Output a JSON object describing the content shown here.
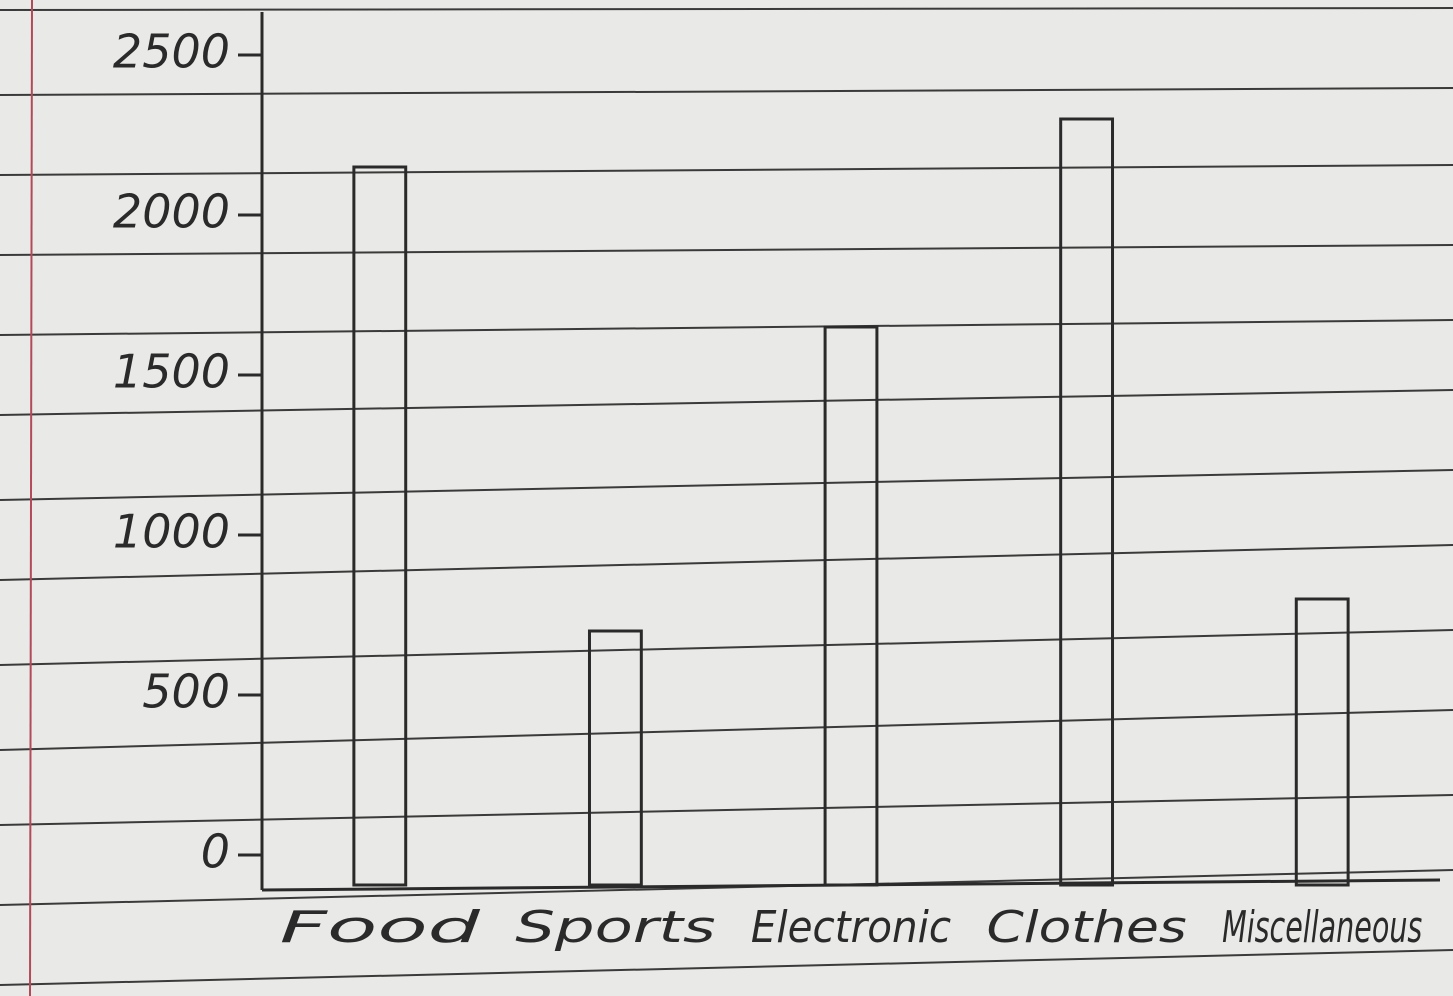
{
  "chart_data": {
    "type": "bar",
    "categories": [
      "Food",
      "Sports",
      "Electronic",
      "Clothes",
      "Miscellaneous"
    ],
    "values": [
      2150,
      700,
      1650,
      2300,
      800
    ],
    "color": "#2a2a2a",
    "ylim": [
      0,
      2600
    ],
    "yticks": [
      0,
      500,
      1000,
      1500,
      2000,
      2500
    ],
    "grid": false
  }
}
